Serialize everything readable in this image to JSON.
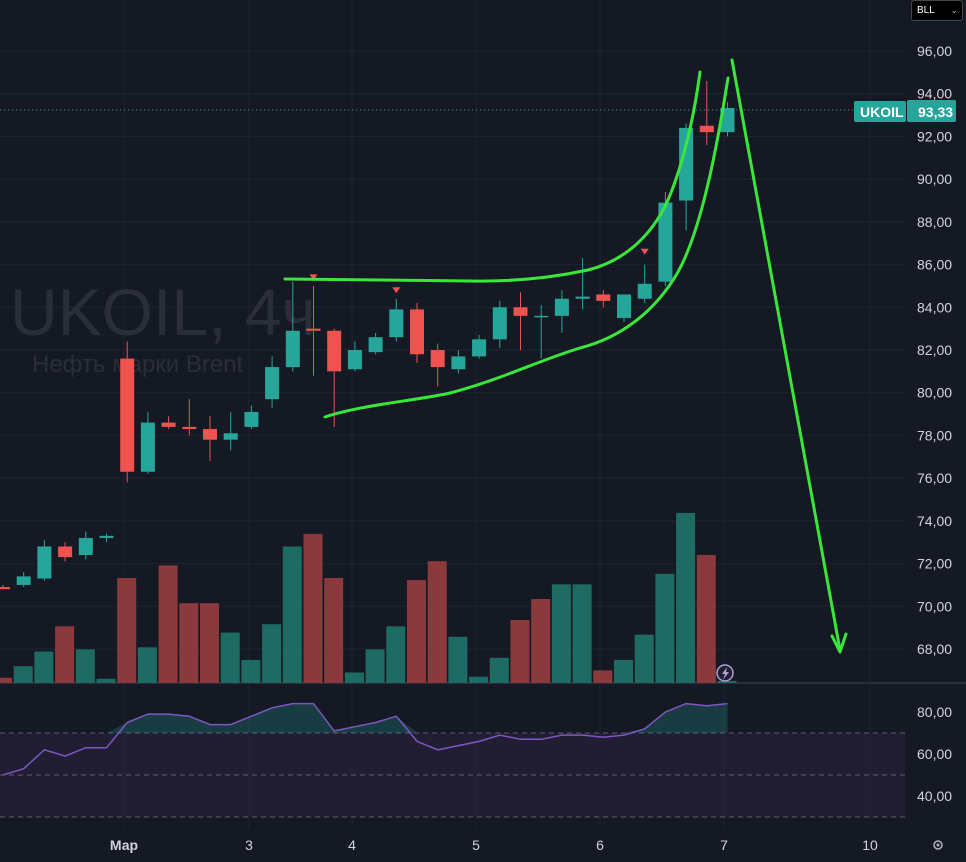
{
  "watermark": {
    "title": "UKOIL, 4ч",
    "subtitle": "Нефть марки Brent"
  },
  "currency_selector": {
    "label": "BLL",
    "chevron_icon": "chevron-down-icon"
  },
  "price_badge": {
    "symbol": "UKOIL",
    "price": "93,33"
  },
  "colors": {
    "background": "#151924",
    "up": "#26a69a",
    "down": "#ef5350",
    "vol_up": "#1e6b64",
    "vol_down": "#8a3a3d",
    "rsi_line": "#7e57c2",
    "rsi_band": "#2a2240",
    "drawing": "#39e639",
    "grid": "#1f2430",
    "badge": "#26a69a"
  },
  "chart_data": [
    {
      "type": "candlestick",
      "symbol": "UKOIL",
      "timeframe": "4ч",
      "ylim": [
        66,
        97
      ],
      "y_ticks": [
        "68,00",
        "70,00",
        "72,00",
        "74,00",
        "76,00",
        "78,00",
        "80,00",
        "82,00",
        "84,00",
        "86,00",
        "88,00",
        "90,00",
        "92,00",
        "94,00",
        "96,00"
      ],
      "x_ticks": [
        "Мар",
        "3",
        "4",
        "5",
        "6",
        "7",
        "10"
      ],
      "last_price": 93.33,
      "candles": [
        {
          "o": 70.9,
          "h": 71.0,
          "l": 70.8,
          "c": 70.8
        },
        {
          "o": 71.0,
          "h": 71.6,
          "l": 70.9,
          "c": 71.4
        },
        {
          "o": 71.3,
          "h": 73.1,
          "l": 71.2,
          "c": 72.8
        },
        {
          "o": 72.8,
          "h": 73.0,
          "l": 72.1,
          "c": 72.3
        },
        {
          "o": 72.4,
          "h": 73.5,
          "l": 72.2,
          "c": 73.2
        },
        {
          "o": 73.2,
          "h": 73.4,
          "l": 73.0,
          "c": 73.3
        },
        {
          "o": 81.6,
          "h": 82.4,
          "l": 75.8,
          "c": 76.3
        },
        {
          "o": 76.3,
          "h": 79.1,
          "l": 76.2,
          "c": 78.6
        },
        {
          "o": 78.6,
          "h": 78.9,
          "l": 78.3,
          "c": 78.4
        },
        {
          "o": 78.4,
          "h": 79.7,
          "l": 78.0,
          "c": 78.3
        },
        {
          "o": 78.3,
          "h": 78.9,
          "l": 76.8,
          "c": 77.8
        },
        {
          "o": 77.8,
          "h": 79.1,
          "l": 77.3,
          "c": 78.1
        },
        {
          "o": 78.4,
          "h": 79.4,
          "l": 78.3,
          "c": 79.1
        },
        {
          "o": 79.7,
          "h": 81.7,
          "l": 79.3,
          "c": 81.2
        },
        {
          "o": 81.2,
          "h": 85.2,
          "l": 81.0,
          "c": 82.9
        },
        {
          "o": 83.0,
          "h": 85.0,
          "l": 80.8,
          "c": 82.9
        },
        {
          "o": 82.9,
          "h": 83.0,
          "l": 78.4,
          "c": 81.0
        },
        {
          "o": 81.1,
          "h": 82.4,
          "l": 81.0,
          "c": 82.0
        },
        {
          "o": 81.9,
          "h": 82.8,
          "l": 81.8,
          "c": 82.6
        },
        {
          "o": 82.6,
          "h": 84.4,
          "l": 82.4,
          "c": 83.9
        },
        {
          "o": 83.9,
          "h": 84.2,
          "l": 81.4,
          "c": 81.8
        },
        {
          "o": 82.0,
          "h": 82.3,
          "l": 80.3,
          "c": 81.2
        },
        {
          "o": 81.1,
          "h": 82.0,
          "l": 80.9,
          "c": 81.7
        },
        {
          "o": 81.7,
          "h": 82.7,
          "l": 81.6,
          "c": 82.5
        },
        {
          "o": 82.5,
          "h": 84.3,
          "l": 82.1,
          "c": 84.0
        },
        {
          "o": 84.0,
          "h": 84.7,
          "l": 82.0,
          "c": 83.6
        },
        {
          "o": 83.6,
          "h": 84.1,
          "l": 81.6,
          "c": 83.6
        },
        {
          "o": 83.6,
          "h": 84.8,
          "l": 82.8,
          "c": 84.4
        },
        {
          "o": 84.4,
          "h": 86.3,
          "l": 83.9,
          "c": 84.5
        },
        {
          "o": 84.6,
          "h": 84.8,
          "l": 84.0,
          "c": 84.3
        },
        {
          "o": 83.5,
          "h": 84.6,
          "l": 83.3,
          "c": 84.6
        },
        {
          "o": 84.4,
          "h": 86.0,
          "l": 84.2,
          "c": 85.1
        },
        {
          "o": 85.2,
          "h": 89.4,
          "l": 85.0,
          "c": 88.9
        },
        {
          "o": 89.0,
          "h": 92.6,
          "l": 87.6,
          "c": 92.4
        },
        {
          "o": 92.5,
          "h": 94.6,
          "l": 91.6,
          "c": 92.2
        },
        {
          "o": 92.2,
          "h": 93.6,
          "l": 92.0,
          "c": 93.33
        }
      ],
      "volume": [
        {
          "v": 0.25,
          "dir": "down"
        },
        {
          "v": 0.8,
          "dir": "up"
        },
        {
          "v": 1.5,
          "dir": "up"
        },
        {
          "v": 2.7,
          "dir": "down"
        },
        {
          "v": 1.6,
          "dir": "up"
        },
        {
          "v": 0.2,
          "dir": "up"
        },
        {
          "v": 5.0,
          "dir": "down"
        },
        {
          "v": 1.7,
          "dir": "up"
        },
        {
          "v": 5.6,
          "dir": "down"
        },
        {
          "v": 3.8,
          "dir": "down"
        },
        {
          "v": 3.8,
          "dir": "down"
        },
        {
          "v": 2.4,
          "dir": "up"
        },
        {
          "v": 1.1,
          "dir": "up"
        },
        {
          "v": 2.8,
          "dir": "up"
        },
        {
          "v": 6.5,
          "dir": "up"
        },
        {
          "v": 7.1,
          "dir": "down"
        },
        {
          "v": 5.0,
          "dir": "down"
        },
        {
          "v": 0.5,
          "dir": "up"
        },
        {
          "v": 1.6,
          "dir": "up"
        },
        {
          "v": 2.7,
          "dir": "up"
        },
        {
          "v": 4.9,
          "dir": "down"
        },
        {
          "v": 5.8,
          "dir": "down"
        },
        {
          "v": 2.2,
          "dir": "up"
        },
        {
          "v": 0.3,
          "dir": "up"
        },
        {
          "v": 1.2,
          "dir": "up"
        },
        {
          "v": 3.0,
          "dir": "down"
        },
        {
          "v": 4.0,
          "dir": "down"
        },
        {
          "v": 4.7,
          "dir": "up"
        },
        {
          "v": 4.7,
          "dir": "up"
        },
        {
          "v": 0.6,
          "dir": "down"
        },
        {
          "v": 1.1,
          "dir": "up"
        },
        {
          "v": 2.3,
          "dir": "up"
        },
        {
          "v": 5.2,
          "dir": "up"
        },
        {
          "v": 8.1,
          "dir": "up"
        },
        {
          "v": 6.1,
          "dir": "down"
        },
        {
          "v": 0.1,
          "dir": "up"
        }
      ]
    },
    {
      "type": "line",
      "name": "RSI",
      "ylim": [
        27,
        88
      ],
      "y_ticks": [
        "40,00",
        "60,00",
        "80,00"
      ],
      "band": [
        30,
        70
      ],
      "levels": [
        30,
        50,
        70
      ],
      "values": [
        50,
        53,
        62,
        59,
        63,
        63,
        75,
        79,
        79,
        78,
        74,
        74,
        78,
        82,
        84,
        84,
        71,
        73,
        75,
        78,
        66,
        62,
        64,
        66,
        69,
        67,
        67,
        69,
        69,
        68,
        69,
        72,
        80,
        84,
        83,
        84
      ]
    }
  ]
}
